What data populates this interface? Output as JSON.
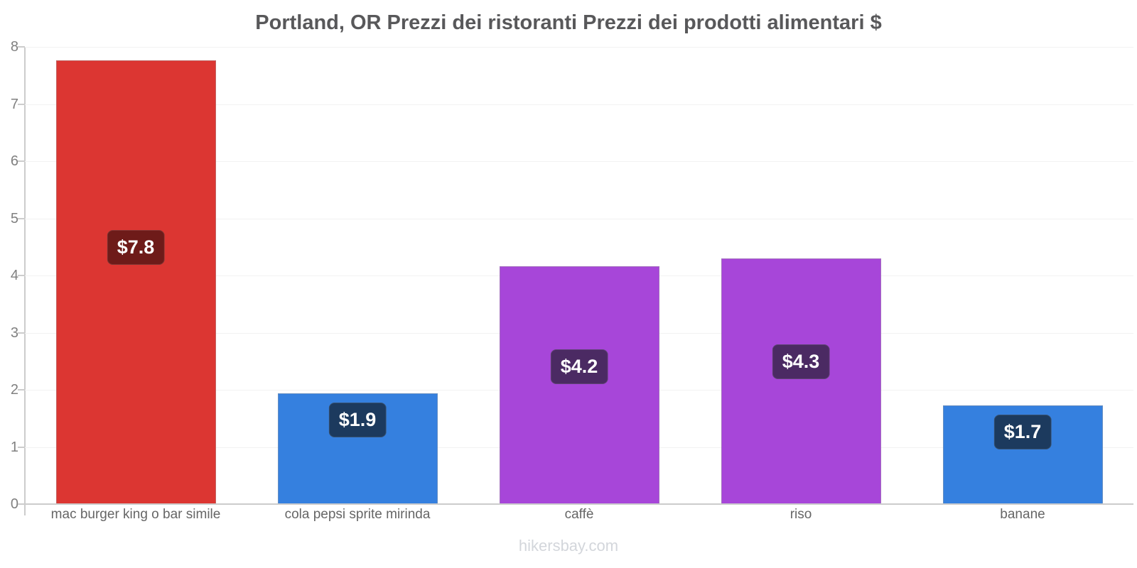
{
  "footer": "hikersbay.com",
  "chart_data": {
    "type": "bar",
    "title": "Portland, OR Prezzi dei ristoranti Prezzi dei prodotti alimentari $",
    "categories": [
      "mac burger king o bar simile",
      "cola pepsi sprite mirinda",
      "caffè",
      "riso",
      "banane"
    ],
    "values": [
      7.76,
      1.94,
      4.16,
      4.3,
      1.73
    ],
    "value_labels": [
      "$7.8",
      "$1.9",
      "$4.2",
      "$4.3",
      "$1.7"
    ],
    "bar_colors": [
      "#dc3632",
      "#3580df",
      "#a746d9",
      "#a746d9",
      "#3580df"
    ],
    "badge_colors": [
      "#6e1b19",
      "#1c3a5e",
      "#4b2a63",
      "#4b2a63",
      "#1c3a5e"
    ],
    "xlabel": "",
    "ylabel": "",
    "ylim": [
      0,
      8
    ],
    "yticks": [
      0,
      1,
      2,
      3,
      4,
      5,
      6,
      7,
      8
    ],
    "grid": true,
    "legend": "none",
    "axis_color": "#cccccc",
    "grid_color": "#f2f2f2",
    "title_color": "#58585a",
    "tick_label_color": "#808080",
    "category_label_color": "#666666",
    "watermark_color": "#d3d6db"
  }
}
